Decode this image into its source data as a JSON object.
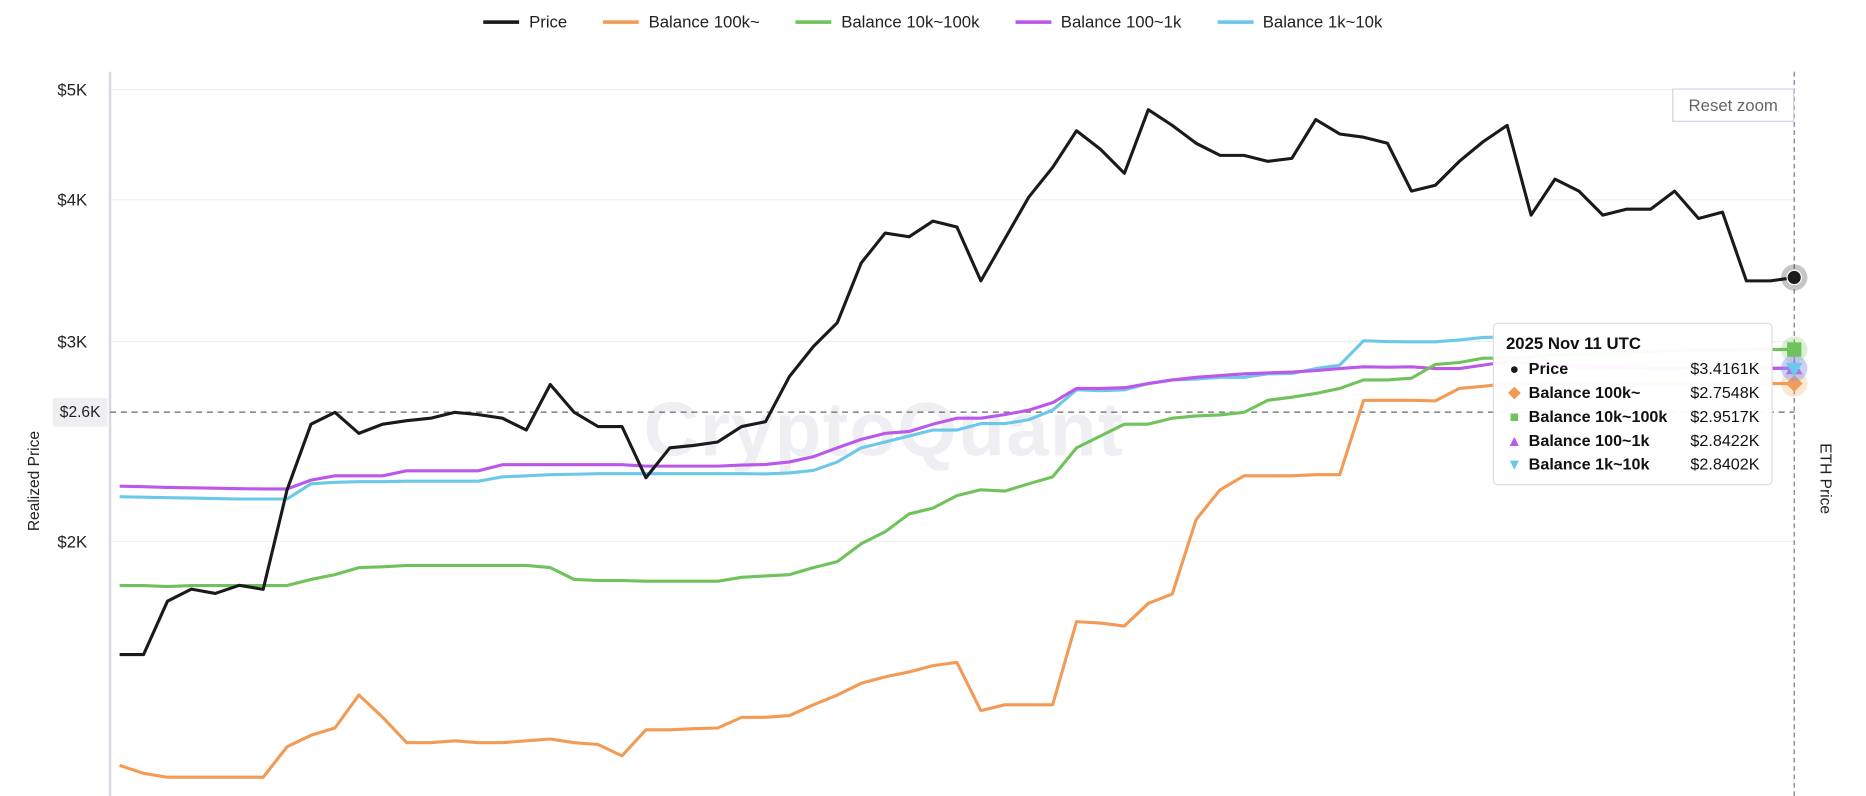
{
  "chart_data": {
    "type": "line",
    "title": "",
    "xlabel": "",
    "ylabel": "Realized Price",
    "y2label": "ETH Price",
    "yscale": "log",
    "ylim": [
      1190,
      5000
    ],
    "yticks": [
      {
        "value": 5000,
        "label": "$5K"
      },
      {
        "value": 4000,
        "label": "$4K"
      },
      {
        "value": 3000,
        "label": "$3K"
      },
      {
        "value": 2000,
        "label": "$2K"
      }
    ],
    "reference_line": {
      "value": 2600,
      "label": "$2.6K"
    },
    "legend_position": "top-center",
    "grid": true,
    "x_note": "71 evenly spaced time samples ending 2025 Nov 11 UTC",
    "series": [
      {
        "name": "Price",
        "color": "#1a1a1a",
        "marker": "circle",
        "values": [
          1590,
          1590,
          1772,
          1816,
          1800,
          1830,
          1815,
          2221,
          2537,
          2599,
          2490,
          2537,
          2555,
          2568,
          2599,
          2587,
          2568,
          2507,
          2750,
          2599,
          2525,
          2525,
          2276,
          2418,
          2430,
          2447,
          2525,
          2550,
          2795,
          2970,
          3117,
          3518,
          3738,
          3710,
          3830,
          3785,
          3393,
          3693,
          4020,
          4270,
          4600,
          4430,
          4220,
          4800,
          4650,
          4484,
          4376,
          4376,
          4323,
          4350,
          4706,
          4570,
          4540,
          4484,
          4070,
          4119,
          4323,
          4500,
          4650,
          3877,
          4170,
          4070,
          3877,
          3924,
          3924,
          4070,
          3850,
          3900,
          3393,
          3393,
          3416
        ]
      },
      {
        "name": "Balance 100k~",
        "color": "#f39a55",
        "marker": "diamond",
        "values": [
          1270,
          1250,
          1240,
          1240,
          1240,
          1240,
          1240,
          1319,
          1350,
          1370,
          1465,
          1400,
          1330,
          1330,
          1335,
          1330,
          1330,
          1335,
          1340,
          1330,
          1325,
          1295,
          1365,
          1365,
          1368,
          1370,
          1400,
          1400,
          1405,
          1436,
          1465,
          1500,
          1520,
          1535,
          1555,
          1565,
          1419,
          1436,
          1436,
          1436,
          1700,
          1695,
          1685,
          1764,
          1798,
          2091,
          2221,
          2285,
          2285,
          2285,
          2290,
          2290,
          2663,
          2663,
          2663,
          2660,
          2728,
          2740,
          2755,
          2755,
          2755,
          2755,
          2755,
          2755,
          2755,
          2755,
          2755,
          2755,
          2755,
          2755,
          2755
        ]
      },
      {
        "name": "Balance 10k~100k",
        "color": "#70c25c",
        "marker": "square",
        "values": [
          1829,
          1829,
          1825,
          1829,
          1829,
          1829,
          1829,
          1829,
          1852,
          1870,
          1897,
          1900,
          1905,
          1905,
          1905,
          1905,
          1905,
          1905,
          1897,
          1852,
          1848,
          1848,
          1845,
          1845,
          1845,
          1845,
          1860,
          1865,
          1870,
          1897,
          1920,
          1991,
          2040,
          2115,
          2140,
          2195,
          2221,
          2215,
          2248,
          2280,
          2418,
          2477,
          2537,
          2537,
          2568,
          2580,
          2585,
          2599,
          2663,
          2680,
          2700,
          2728,
          2775,
          2775,
          2785,
          2864,
          2875,
          2900,
          2900,
          2905,
          2920,
          2925,
          2930,
          2935,
          2940,
          2945,
          2950,
          2950,
          2951,
          2952,
          2952
        ]
      },
      {
        "name": "Balance 100~1k",
        "color": "#bb58ea",
        "marker": "triangle-up",
        "values": [
          2237,
          2235,
          2232,
          2230,
          2228,
          2226,
          2225,
          2225,
          2265,
          2285,
          2285,
          2285,
          2308,
          2308,
          2308,
          2308,
          2337,
          2337,
          2337,
          2337,
          2337,
          2337,
          2330,
          2330,
          2330,
          2330,
          2335,
          2338,
          2350,
          2375,
          2418,
          2460,
          2490,
          2500,
          2537,
          2568,
          2568,
          2587,
          2610,
          2650,
          2728,
          2728,
          2732,
          2755,
          2775,
          2790,
          2800,
          2810,
          2815,
          2820,
          2828,
          2840,
          2850,
          2848,
          2850,
          2840,
          2840,
          2860,
          2880,
          2870,
          2860,
          2855,
          2850,
          2848,
          2846,
          2845,
          2844,
          2843,
          2843,
          2842,
          2842
        ]
      },
      {
        "name": "Balance 1k~10k",
        "color": "#6cc8e8",
        "marker": "triangle-down",
        "values": [
          2190,
          2188,
          2186,
          2184,
          2182,
          2180,
          2180,
          2180,
          2248,
          2255,
          2258,
          2258,
          2260,
          2260,
          2260,
          2260,
          2280,
          2285,
          2290,
          2292,
          2295,
          2295,
          2295,
          2295,
          2295,
          2295,
          2295,
          2294,
          2298,
          2310,
          2350,
          2418,
          2447,
          2477,
          2507,
          2507,
          2540,
          2540,
          2560,
          2610,
          2720,
          2715,
          2720,
          2755,
          2775,
          2780,
          2790,
          2790,
          2810,
          2812,
          2840,
          2860,
          3005,
          3000,
          2998,
          2998,
          3010,
          3025,
          3028,
          2950,
          2860,
          2845,
          2843,
          2842,
          2841,
          2841,
          2840,
          2840,
          2840,
          2840,
          2840
        ]
      }
    ],
    "tooltip": {
      "date": "2025 Nov 11 UTC",
      "rows": [
        {
          "name": "Price",
          "value": "$3.4161K",
          "symbol": "●",
          "color": "#1a1a1a"
        },
        {
          "name": "Balance 100k~",
          "value": "$2.7548K",
          "symbol": "◆",
          "color": "#f39a55"
        },
        {
          "name": "Balance 10k~100k",
          "value": "$2.9517K",
          "symbol": "■",
          "color": "#70c25c"
        },
        {
          "name": "Balance 100~1k",
          "value": "$2.8422K",
          "symbol": "▲",
          "color": "#bb58ea"
        },
        {
          "name": "Balance 1k~10k",
          "value": "$2.8402K",
          "symbol": "▼",
          "color": "#6cc8e8"
        }
      ]
    }
  },
  "ui": {
    "reset_zoom": "Reset zoom",
    "watermark": "CryptoQuant"
  }
}
